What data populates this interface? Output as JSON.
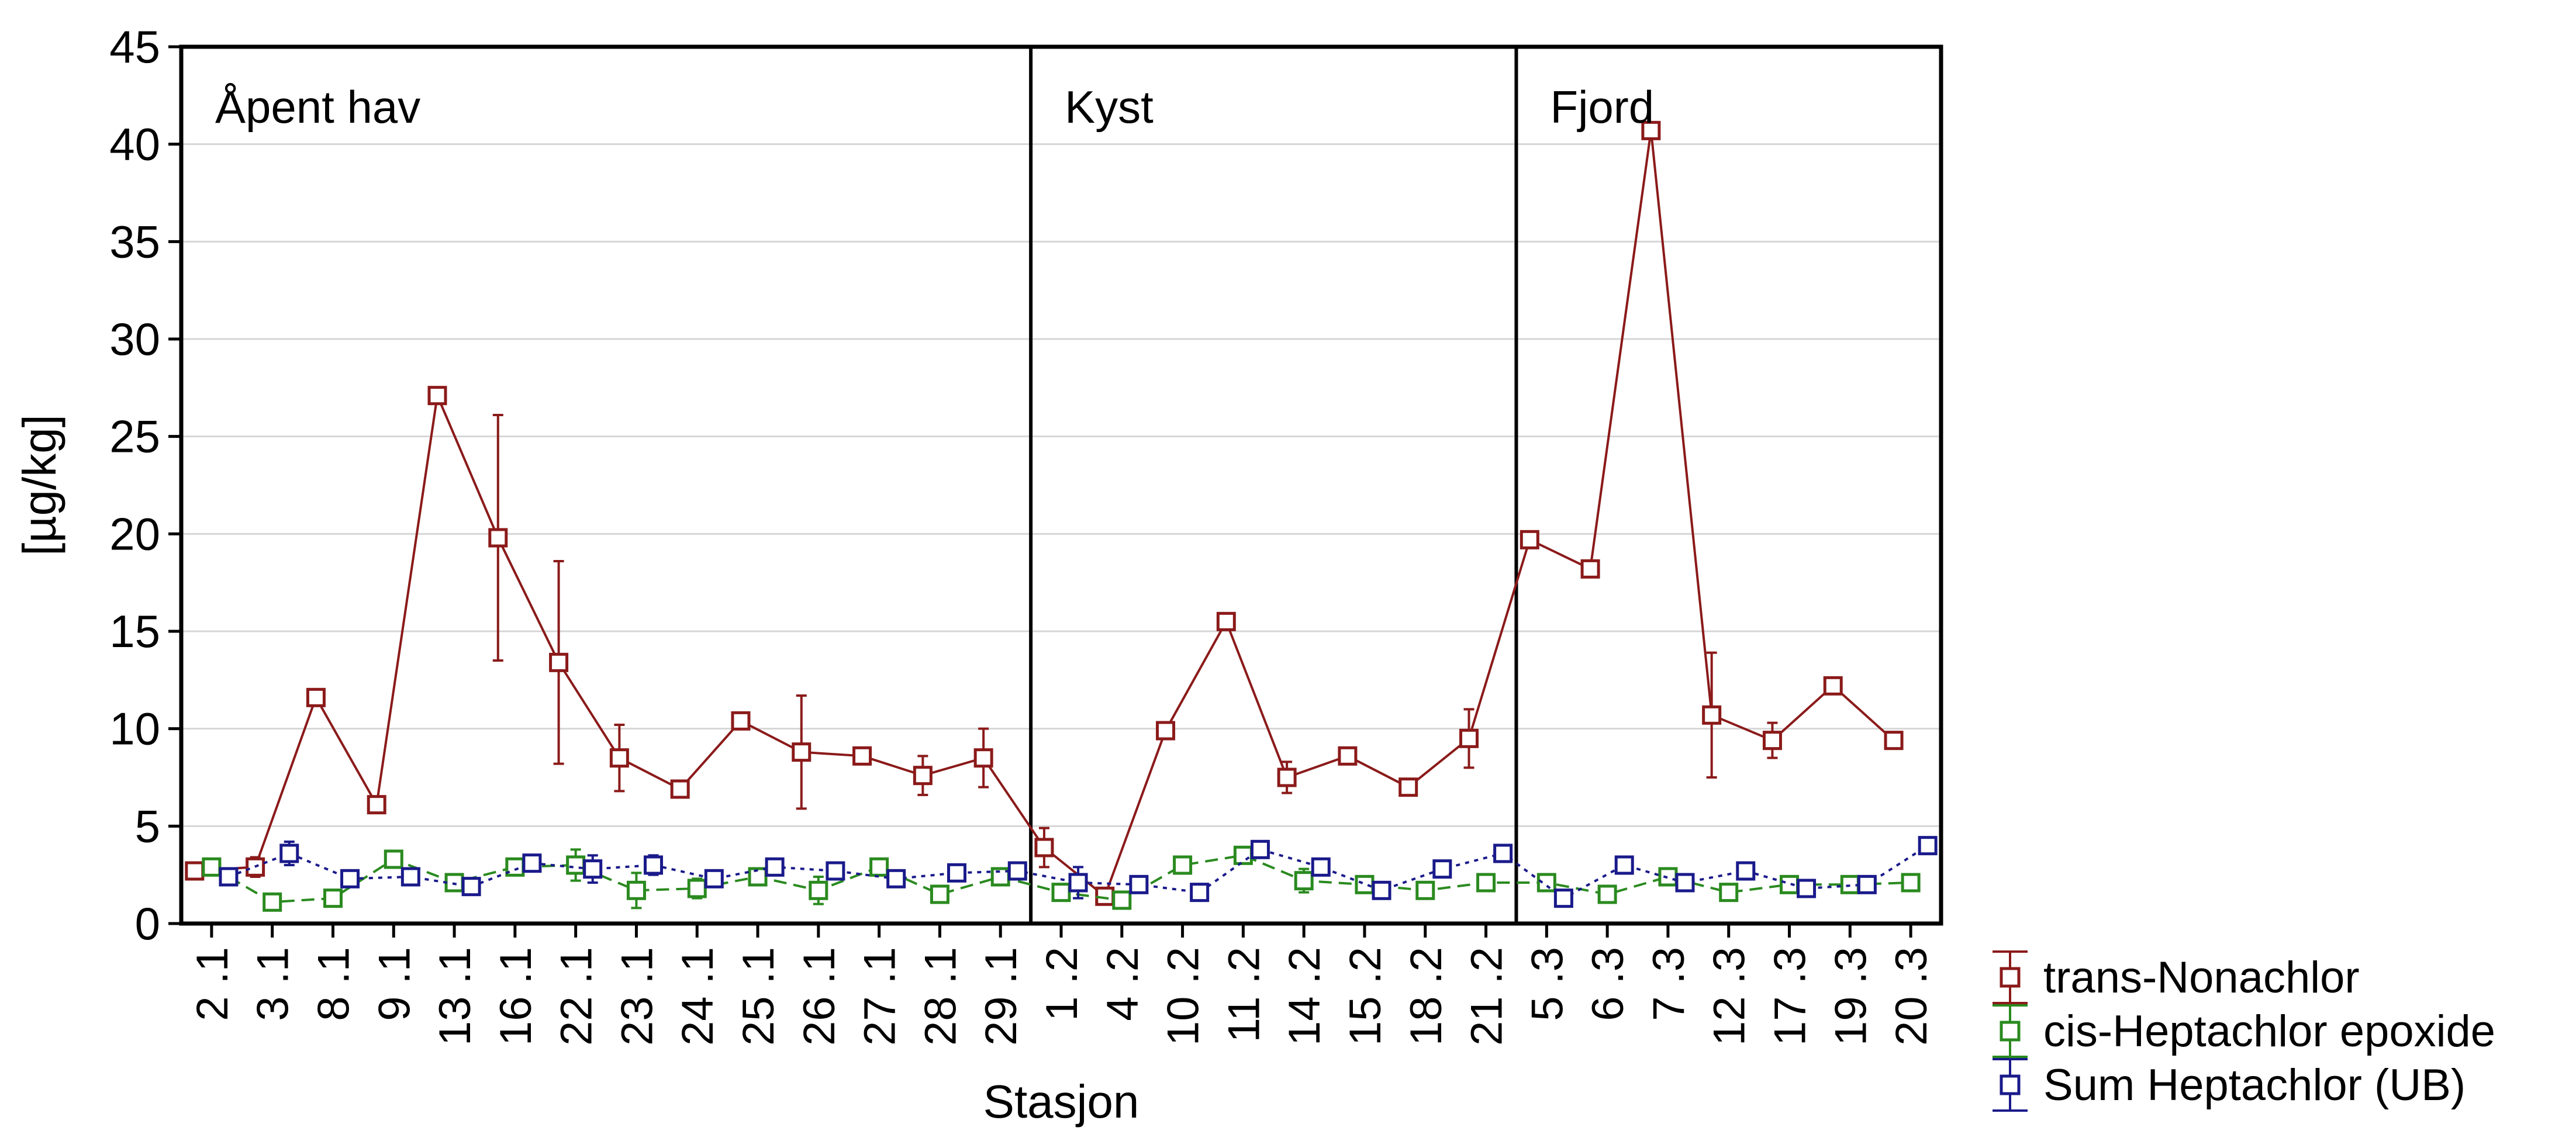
{
  "chart_data": {
    "type": "line",
    "title": "",
    "xlabel": "Stasjon",
    "ylabel": "[µg/kg]",
    "ylim": [
      0,
      45
    ],
    "yticks": [
      "0",
      "5",
      "10",
      "15",
      "20",
      "25",
      "30",
      "35",
      "40",
      "45"
    ],
    "grid": "horizontal",
    "legend_position": "bottom-right",
    "categories": [
      "2 .1",
      "3 .1",
      "8 .1",
      "9 .1",
      "13 .1",
      "16 .1",
      "22 .1",
      "23 .1",
      "24 .1",
      "25 .1",
      "26 .1",
      "27 .1",
      "28 .1",
      "29 .1",
      "1 .2",
      "4 .2",
      "10 .2",
      "11 .2",
      "14 .2",
      "15 .2",
      "18 .2",
      "21 .2",
      "5 .3",
      "6 .3",
      "7 .3",
      "12 .3",
      "17 .3",
      "19 .3",
      "20 .3"
    ],
    "regions": [
      {
        "label": "Åpent hav",
        "start": 0,
        "end": 13
      },
      {
        "label": "Kyst",
        "start": 14,
        "end": 21
      },
      {
        "label": "Fjord",
        "start": 22,
        "end": 28
      }
    ],
    "series": [
      {
        "name": "trans-Nonachlor",
        "color": "#8b1a1a",
        "dash": "solid",
        "offset": -0.28,
        "values": [
          2.7,
          2.9,
          11.6,
          6.1,
          27.1,
          19.8,
          13.4,
          8.5,
          6.9,
          10.4,
          8.8,
          8.6,
          7.6,
          8.5,
          3.9,
          1.4,
          9.9,
          15.5,
          7.5,
          8.6,
          7.0,
          9.5,
          19.7,
          18.2,
          40.7,
          10.7,
          9.4,
          12.2,
          9.4
        ],
        "err": [
          0,
          0.5,
          0,
          0,
          0,
          6.3,
          5.2,
          1.7,
          0,
          0,
          2.9,
          0,
          1.0,
          1.5,
          1.0,
          0,
          0,
          0,
          0.8,
          0,
          0,
          1.5,
          0,
          0,
          0,
          3.2,
          0.9,
          0,
          0
        ]
      },
      {
        "name": "cis-Heptachlor epoxide",
        "color": "#2a8a1f",
        "dash": "dashed",
        "offset": 0,
        "values": [
          2.9,
          1.1,
          1.3,
          3.3,
          2.1,
          2.9,
          3.0,
          1.7,
          1.8,
          2.4,
          1.7,
          2.9,
          1.5,
          2.4,
          1.6,
          1.2,
          3.0,
          3.5,
          2.2,
          2.0,
          1.7,
          2.1,
          2.1,
          1.5,
          2.4,
          1.6,
          2.0,
          2.0,
          2.1
        ],
        "err": [
          0,
          0.4,
          0,
          0,
          0,
          0,
          0.8,
          0.9,
          0.5,
          0,
          0.7,
          0,
          0,
          0,
          0,
          0,
          0,
          0,
          0.6,
          0,
          0,
          0,
          0,
          0,
          0,
          0,
          0,
          0,
          0
        ]
      },
      {
        "name": "Sum Heptachlor (UB)",
        "color": "#1a1a8b",
        "dash": "dotted",
        "offset": 0.28,
        "values": [
          2.4,
          3.6,
          2.3,
          2.4,
          1.9,
          3.1,
          2.8,
          3.0,
          2.3,
          2.9,
          2.7,
          2.3,
          2.6,
          2.7,
          2.1,
          2.0,
          1.6,
          3.8,
          2.9,
          1.7,
          2.8,
          3.6,
          1.3,
          3.0,
          2.1,
          2.7,
          1.8,
          2.0,
          4.0
        ],
        "err": [
          0,
          0.6,
          0,
          0,
          0,
          0,
          0.7,
          0.5,
          0,
          0,
          0,
          0,
          0,
          0,
          0.8,
          0,
          0,
          0,
          0,
          0,
          0,
          0,
          0,
          0,
          0,
          0,
          0,
          0,
          0
        ]
      }
    ]
  }
}
